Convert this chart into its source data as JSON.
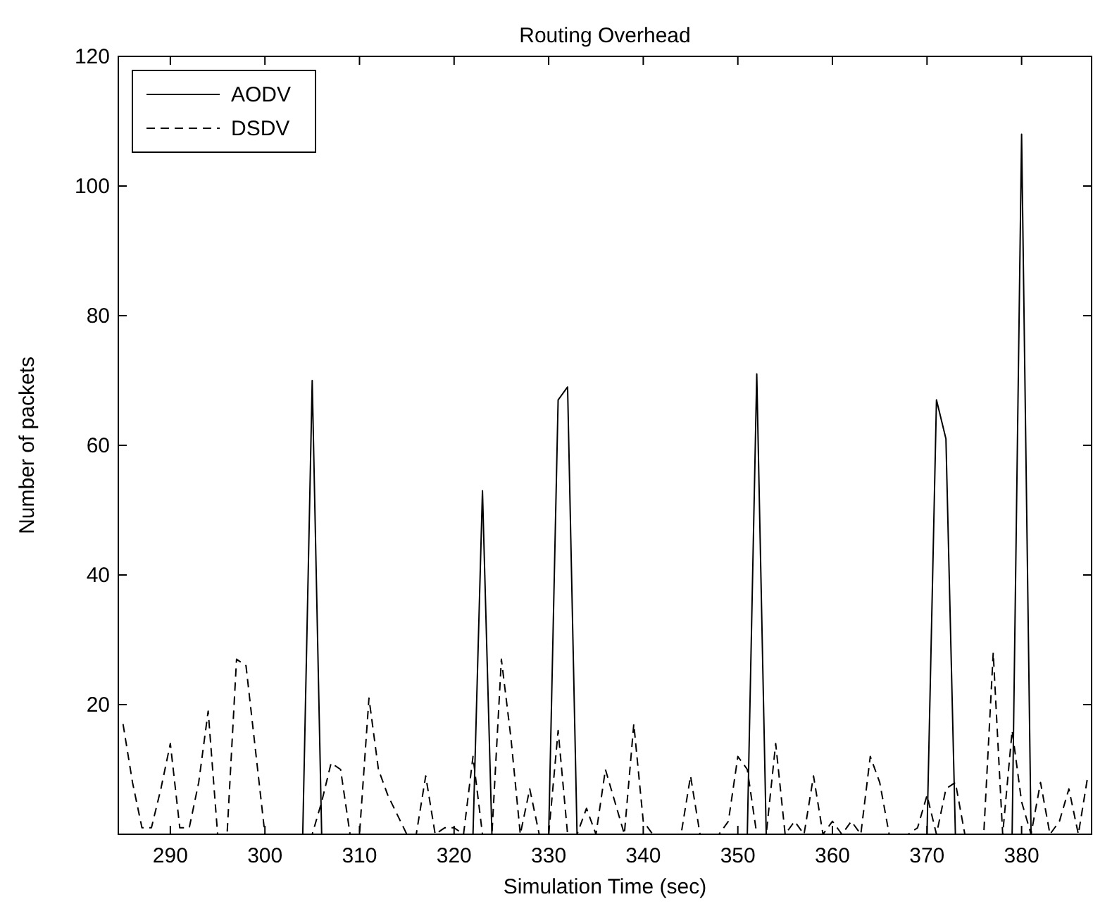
{
  "chart_data": {
    "type": "line",
    "title": "Routing Overhead",
    "xlabel": "Simulation Time (sec)",
    "ylabel": "Number of packets",
    "x": [
      285,
      286,
      287,
      288,
      289,
      290,
      291,
      292,
      293,
      294,
      295,
      296,
      297,
      298,
      299,
      300,
      301,
      302,
      303,
      304,
      305,
      306,
      307,
      308,
      309,
      310,
      311,
      312,
      313,
      314,
      315,
      316,
      317,
      318,
      319,
      320,
      321,
      322,
      323,
      324,
      325,
      326,
      327,
      328,
      329,
      330,
      331,
      332,
      333,
      334,
      335,
      336,
      337,
      338,
      339,
      340,
      341,
      342,
      343,
      344,
      345,
      346,
      347,
      348,
      349,
      350,
      351,
      352,
      353,
      354,
      355,
      356,
      357,
      358,
      359,
      360,
      361,
      362,
      363,
      364,
      365,
      366,
      367,
      368,
      369,
      370,
      371,
      372,
      373,
      374,
      375,
      376,
      377,
      378,
      379,
      380,
      381,
      382,
      383,
      384,
      385,
      386,
      387
    ],
    "series": [
      {
        "name": "AODV",
        "color": "#000000",
        "line_style": "solid",
        "values": [
          0,
          0,
          0,
          0,
          0,
          0,
          0,
          0,
          0,
          0,
          0,
          0,
          0,
          0,
          0,
          0,
          0,
          0,
          0,
          0,
          70,
          0,
          0,
          0,
          0,
          0,
          0,
          0,
          0,
          0,
          0,
          0,
          0,
          0,
          0,
          0,
          0,
          0,
          53,
          0,
          0,
          0,
          0,
          0,
          0,
          0,
          67,
          69,
          0,
          0,
          0,
          0,
          0,
          0,
          0,
          0,
          0,
          0,
          0,
          0,
          0,
          0,
          0,
          0,
          0,
          0,
          0,
          71,
          0,
          0,
          0,
          0,
          0,
          0,
          0,
          0,
          0,
          0,
          0,
          0,
          0,
          0,
          0,
          0,
          0,
          0,
          67,
          61,
          0,
          0,
          0,
          0,
          0,
          0,
          0,
          108,
          0,
          0,
          0,
          0,
          0,
          0,
          0
        ]
      },
      {
        "name": "DSDV",
        "color": "#000000",
        "line_style": "dashed",
        "values": [
          17,
          8,
          1,
          1,
          7,
          14,
          1,
          1,
          8,
          19,
          0,
          0,
          27,
          26,
          13,
          0,
          0,
          0,
          0,
          0,
          0,
          5,
          11,
          10,
          0,
          0,
          21,
          10,
          6,
          3,
          0,
          0,
          9,
          0,
          1,
          1,
          0,
          12,
          0,
          0,
          27,
          15,
          0,
          7,
          0,
          0,
          16,
          0,
          0,
          4,
          0,
          10,
          5,
          0,
          17,
          2,
          0,
          0,
          0,
          0,
          9,
          0,
          0,
          0,
          2,
          12,
          10,
          0,
          0,
          14,
          0,
          2,
          0,
          9,
          0,
          2,
          0,
          2,
          0,
          12,
          8,
          0,
          0,
          0,
          1,
          6,
          0,
          7,
          8,
          0,
          0,
          0,
          28,
          0,
          16,
          5,
          0,
          8,
          0,
          2,
          7,
          0,
          9
        ]
      }
    ],
    "xlim": [
      284.5,
      387.4
    ],
    "xticks": [
      290,
      300,
      310,
      320,
      330,
      340,
      350,
      360,
      370,
      380
    ],
    "ylim": [
      0,
      120
    ],
    "yticks": [
      20,
      40,
      60,
      80,
      100,
      120
    ],
    "legend": "top left",
    "marker": "none",
    "grid": false
  }
}
